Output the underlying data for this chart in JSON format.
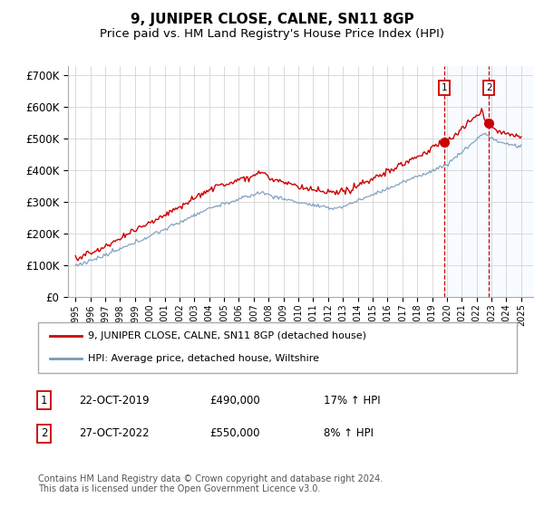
{
  "title": "9, JUNIPER CLOSE, CALNE, SN11 8GP",
  "subtitle": "Price paid vs. HM Land Registry's House Price Index (HPI)",
  "title_fontsize": 11,
  "subtitle_fontsize": 9.5,
  "ylabel_ticks": [
    "£0",
    "£100K",
    "£200K",
    "£300K",
    "£400K",
    "£500K",
    "£600K",
    "£700K"
  ],
  "ytick_values": [
    0,
    100000,
    200000,
    300000,
    400000,
    500000,
    600000,
    700000
  ],
  "ylim": [
    0,
    730000
  ],
  "xlim_start": 1994.5,
  "xlim_end": 2025.8,
  "grid_color": "#cccccc",
  "red_line_color": "#cc0000",
  "blue_line_color": "#7799bb",
  "shade_color": "#ddeeff",
  "dashed_line_color": "#cc0000",
  "marker1_x": 2019.81,
  "marker2_x": 2022.82,
  "marker1_y": 490000,
  "marker2_y": 550000,
  "legend_label_red": "9, JUNIPER CLOSE, CALNE, SN11 8GP (detached house)",
  "legend_label_blue": "HPI: Average price, detached house, Wiltshire",
  "annotation1_num": "1",
  "annotation2_num": "2",
  "annotation1_date": "22-OCT-2019",
  "annotation1_price": "£490,000",
  "annotation1_hpi": "17% ↑ HPI",
  "annotation2_date": "27-OCT-2022",
  "annotation2_price": "£550,000",
  "annotation2_hpi": "8% ↑ HPI",
  "footer": "Contains HM Land Registry data © Crown copyright and database right 2024.\nThis data is licensed under the Open Government Licence v3.0.",
  "xtick_years": [
    1995,
    1996,
    1997,
    1998,
    1999,
    2000,
    2001,
    2002,
    2003,
    2004,
    2005,
    2006,
    2007,
    2008,
    2009,
    2010,
    2011,
    2012,
    2013,
    2014,
    2015,
    2016,
    2017,
    2018,
    2019,
    2020,
    2021,
    2022,
    2023,
    2024,
    2025
  ]
}
